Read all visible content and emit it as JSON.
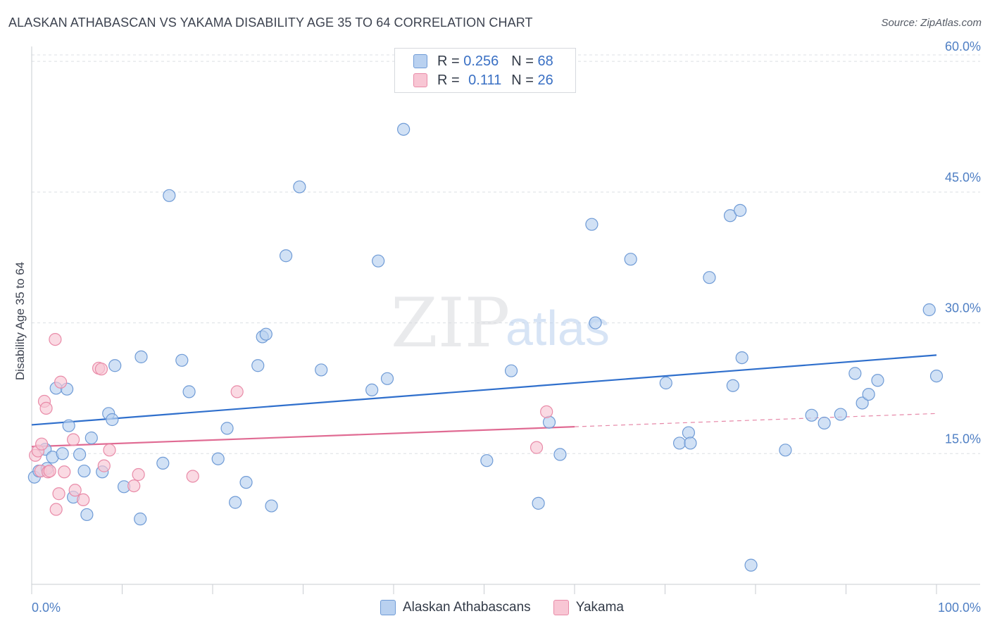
{
  "header": {
    "title": "ALASKAN ATHABASCAN VS YAKAMA DISABILITY AGE 35 TO 64 CORRELATION CHART",
    "source": "Source: ZipAtlas.com"
  },
  "legend": {
    "rows": [
      {
        "r_label": "R =",
        "r_value": "0.256",
        "n_label": "N =",
        "n_value": "68"
      },
      {
        "r_label": "R =",
        "r_value": "0.111",
        "n_label": "N =",
        "n_value": "26"
      }
    ]
  },
  "colors": {
    "blue_fill": "#b9d1f0",
    "blue_stroke": "#6f9bd6",
    "blue_line": "#2f6fcc",
    "pink_fill": "#f8c6d4",
    "pink_stroke": "#e98ba8",
    "pink_line": "#e06b93"
  },
  "watermark": {
    "zip": "ZIP",
    "atlas": "atlas"
  },
  "chart_data": {
    "type": "scatter",
    "title": "ALASKAN ATHABASCAN VS YAKAMA DISABILITY AGE 35 TO 64 CORRELATION CHART",
    "xlabel": "",
    "ylabel": "Disability Age 35 to 64",
    "xlim": [
      0,
      100
    ],
    "ylim": [
      0,
      63
    ],
    "x_ticks": [
      "0.0%",
      "100.0%"
    ],
    "y_ticks": [
      {
        "value": 15,
        "label": "15.0%"
      },
      {
        "value": 30,
        "label": "30.0%"
      },
      {
        "value": 45,
        "label": "45.0%"
      },
      {
        "value": 60,
        "label": "60.0%"
      }
    ],
    "grid": true,
    "legend_position": "top-center",
    "series": [
      {
        "name": "Alaskan Athabascans",
        "color": "#6f9bd6",
        "trend": {
          "x": [
            0,
            100
          ],
          "y": [
            18.3,
            26.3
          ],
          "dashed_from": null
        },
        "points": [
          [
            0.3,
            12.3
          ],
          [
            0.8,
            13.0
          ],
          [
            1.5,
            15.5
          ],
          [
            1.7,
            13.3
          ],
          [
            2.3,
            14.6
          ],
          [
            2.7,
            22.5
          ],
          [
            3.4,
            15.0
          ],
          [
            3.9,
            22.4
          ],
          [
            4.1,
            18.2
          ],
          [
            4.6,
            10.0
          ],
          [
            5.3,
            14.9
          ],
          [
            5.8,
            13.0
          ],
          [
            6.1,
            8.0
          ],
          [
            6.6,
            16.8
          ],
          [
            7.8,
            12.9
          ],
          [
            8.5,
            19.6
          ],
          [
            8.9,
            18.9
          ],
          [
            9.2,
            25.1
          ],
          [
            10.2,
            11.2
          ],
          [
            12.0,
            7.5
          ],
          [
            12.1,
            26.1
          ],
          [
            14.5,
            13.9
          ],
          [
            15.2,
            44.6
          ],
          [
            16.6,
            25.7
          ],
          [
            17.4,
            22.1
          ],
          [
            20.6,
            14.4
          ],
          [
            21.6,
            17.9
          ],
          [
            22.5,
            9.4
          ],
          [
            23.7,
            11.7
          ],
          [
            25.0,
            25.1
          ],
          [
            25.5,
            28.4
          ],
          [
            25.9,
            28.7
          ],
          [
            26.5,
            9.0
          ],
          [
            28.1,
            37.7
          ],
          [
            29.6,
            45.6
          ],
          [
            32.0,
            24.6
          ],
          [
            37.6,
            22.3
          ],
          [
            38.3,
            37.1
          ],
          [
            39.3,
            23.6
          ],
          [
            41.1,
            52.2
          ],
          [
            50.3,
            14.2
          ],
          [
            53.0,
            24.5
          ],
          [
            56.0,
            9.3
          ],
          [
            57.2,
            18.6
          ],
          [
            58.4,
            14.9
          ],
          [
            61.9,
            41.3
          ],
          [
            62.3,
            30.0
          ],
          [
            66.2,
            37.3
          ],
          [
            70.1,
            23.1
          ],
          [
            71.6,
            16.2
          ],
          [
            72.6,
            17.4
          ],
          [
            72.8,
            16.2
          ],
          [
            74.9,
            35.2
          ],
          [
            77.2,
            42.3
          ],
          [
            77.5,
            22.8
          ],
          [
            78.3,
            42.9
          ],
          [
            78.5,
            26.0
          ],
          [
            79.5,
            2.2
          ],
          [
            83.3,
            15.4
          ],
          [
            86.2,
            19.4
          ],
          [
            87.6,
            18.5
          ],
          [
            89.4,
            19.5
          ],
          [
            91.0,
            24.2
          ],
          [
            91.8,
            20.8
          ],
          [
            92.5,
            21.8
          ],
          [
            93.5,
            23.4
          ],
          [
            99.2,
            31.5
          ],
          [
            100.0,
            23.9
          ]
        ]
      },
      {
        "name": "Yakama",
        "color": "#e98ba8",
        "trend": {
          "x": [
            0,
            100
          ],
          "y": [
            15.8,
            19.6
          ],
          "dashed_from": 60
        },
        "points": [
          [
            0.4,
            14.8
          ],
          [
            0.7,
            15.3
          ],
          [
            1.0,
            13.0
          ],
          [
            1.1,
            16.1
          ],
          [
            1.4,
            21.0
          ],
          [
            1.6,
            20.2
          ],
          [
            1.8,
            12.9
          ],
          [
            2.0,
            13.0
          ],
          [
            2.6,
            28.1
          ],
          [
            2.7,
            8.6
          ],
          [
            3.0,
            10.4
          ],
          [
            3.2,
            23.2
          ],
          [
            3.6,
            12.9
          ],
          [
            4.6,
            16.6
          ],
          [
            4.8,
            10.8
          ],
          [
            5.7,
            9.7
          ],
          [
            7.4,
            24.8
          ],
          [
            7.7,
            24.7
          ],
          [
            8.0,
            13.6
          ],
          [
            8.6,
            15.4
          ],
          [
            11.3,
            11.3
          ],
          [
            11.8,
            12.6
          ],
          [
            17.8,
            12.4
          ],
          [
            22.7,
            22.1
          ],
          [
            55.8,
            15.7
          ],
          [
            56.9,
            19.8
          ]
        ]
      }
    ]
  }
}
